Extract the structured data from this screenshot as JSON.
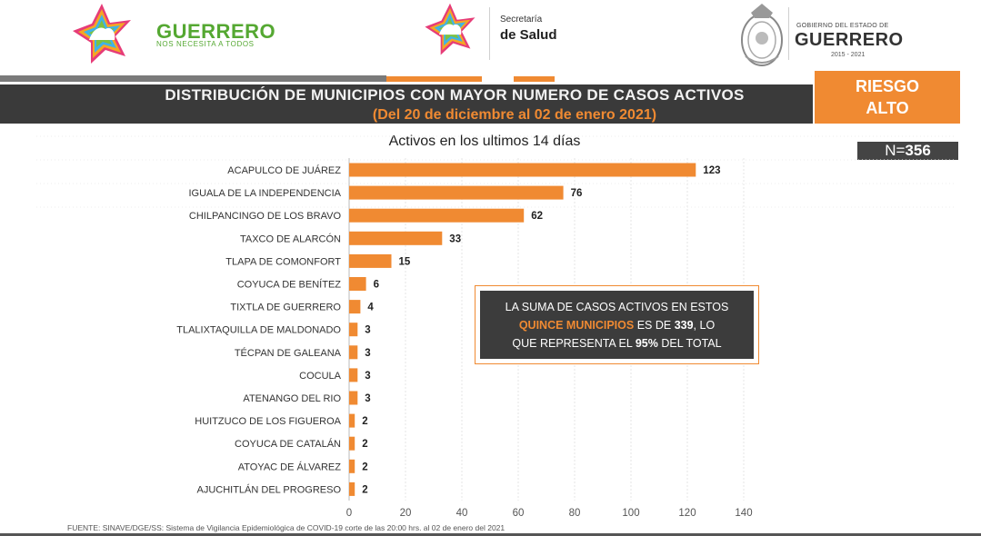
{
  "header": {
    "brand_name": "GUERRERO",
    "brand_slogan": "NOS NECESITA A TODOS",
    "salud_line1": "Secretaría",
    "salud_line2": "de Salud",
    "gob_line1": "GOBIERNO DEL ESTADO DE",
    "gob_line2": "GUERRERO",
    "gob_line3": "2015 - 2021"
  },
  "title": {
    "line1": "DISTRIBUCIÓN DE MUNICIPIOS CON MAYOR NUMERO DE  CASOS ACTIVOS",
    "line2": "(Del 20 de diciembre al 02 de enero 2021)"
  },
  "risk": {
    "line1": "RIESGO",
    "line2": "ALTO"
  },
  "n_badge": {
    "prefix": "N=",
    "value": "356"
  },
  "callout": {
    "line1": "LA SUMA DE CASOS ACTIVOS EN ESTOS",
    "highlight": "QUINCE MUNICIPIOS",
    "mid": " ES DE ",
    "sum": "339",
    "mid_end": ", LO",
    "line3_start": "QUE REPRESENTA EL ",
    "percent": "95%",
    "line3_end": " DEL TOTAL"
  },
  "footer": {
    "source": "FUENTE: SINAVE/DGE/SS: Sistema de Vigilancia Epidemiológica de COVID-19 corte de las 20:00 hrs. al 02 de enero del 2021"
  },
  "colors": {
    "accent": "#f08a32",
    "dark": "#3a3a3a"
  },
  "chart_data": {
    "type": "bar",
    "orientation": "horizontal",
    "title": "Activos en los ultimos 14 días",
    "categories": [
      "ACAPULCO DE JUÁREZ",
      "IGUALA DE LA INDEPENDENCIA",
      "CHILPANCINGO DE LOS BRAVO",
      "TAXCO DE ALARCÓN",
      "TLAPA DE COMONFORT",
      "COYUCA DE BENÍTEZ",
      "TIXTLA DE GUERRERO",
      "TLALIXTAQUILLA DE MALDONADO",
      "TÉCPAN DE GALEANA",
      "COCULA",
      "ATENANGO DEL RIO",
      "HUITZUCO DE LOS FIGUEROA",
      "COYUCA DE CATALÁN",
      "ATOYAC DE ÁLVAREZ",
      "AJUCHITLÁN DEL PROGRESO"
    ],
    "values": [
      123,
      76,
      62,
      33,
      15,
      6,
      4,
      3,
      3,
      3,
      3,
      2,
      2,
      2,
      2
    ],
    "x_ticks": [
      0,
      20,
      40,
      60,
      80,
      100,
      120,
      140
    ],
    "xlim": [
      0,
      140
    ],
    "grid": true,
    "bar_color": "#f08a32"
  }
}
